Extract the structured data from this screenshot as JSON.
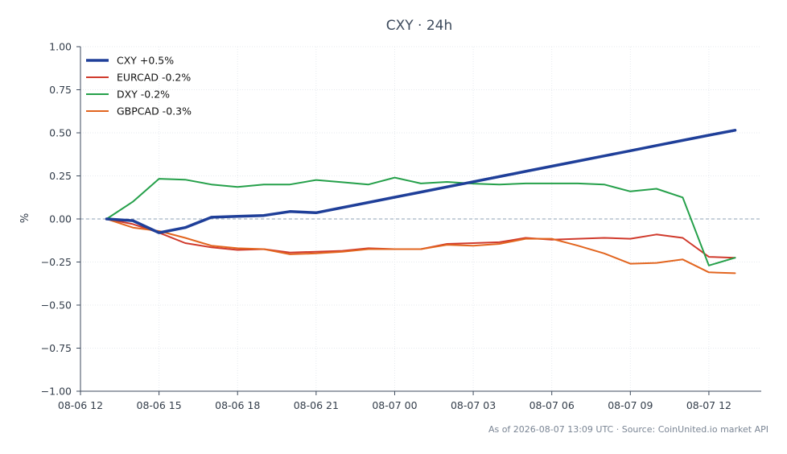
{
  "chart_data": {
    "type": "line",
    "title": "CXY · 24h",
    "xlabel": "",
    "ylabel": "%",
    "ylim": [
      -1.0,
      1.0
    ],
    "y_ticks": [
      "1.00",
      "0.75",
      "0.50",
      "0.25",
      "0.00",
      "−0.25",
      "−0.50",
      "−0.75",
      "−1.00"
    ],
    "x_ticks": [
      "08-06 12",
      "08-06 15",
      "08-06 18",
      "08-06 21",
      "08-07 00",
      "08-07 03",
      "08-07 06",
      "08-07 09",
      "08-07 12"
    ],
    "x_start": "08-06 12",
    "x_end": "08-07 14",
    "x": [
      "08-06 13",
      "08-06 14",
      "08-06 15",
      "08-06 16",
      "08-06 17",
      "08-06 18",
      "08-06 19",
      "08-06 20",
      "08-06 21",
      "08-06 22",
      "08-06 23",
      "08-07 00",
      "08-07 01",
      "08-07 02",
      "08-07 03",
      "08-07 04",
      "08-07 05",
      "08-07 06",
      "08-07 07",
      "08-07 08",
      "08-07 09",
      "08-07 10",
      "08-07 11",
      "08-07 12",
      "08-07 13"
    ],
    "zero_line": true,
    "grid": true,
    "legend_position": "top-left",
    "series": [
      {
        "name": "CXY +0.5%",
        "color": "#1f3f99",
        "width": 3.5,
        "values": [
          0.0,
          -0.01,
          -0.08,
          -0.05,
          0.01,
          0.015,
          0.02,
          0.043,
          0.036,
          0.066,
          0.096,
          0.126,
          0.156,
          0.186,
          0.216,
          0.246,
          0.276,
          0.306,
          0.336,
          0.366,
          0.396,
          0.426,
          0.456,
          0.486,
          0.515
        ]
      },
      {
        "name": "EURCAD -0.2%",
        "color": "#d03a2c",
        "width": 2,
        "values": [
          0.0,
          -0.03,
          -0.08,
          -0.14,
          -0.165,
          -0.18,
          -0.175,
          -0.195,
          -0.19,
          -0.185,
          -0.17,
          -0.175,
          -0.175,
          -0.145,
          -0.14,
          -0.135,
          -0.11,
          -0.12,
          -0.115,
          -0.11,
          -0.115,
          -0.09,
          -0.11,
          -0.22,
          -0.225
        ]
      },
      {
        "name": "DXY -0.2%",
        "color": "#25a04a",
        "width": 2,
        "values": [
          0.0,
          0.1,
          0.233,
          0.228,
          0.2,
          0.186,
          0.2,
          0.2,
          0.226,
          0.213,
          0.2,
          0.24,
          0.206,
          0.215,
          0.205,
          0.2,
          0.206,
          0.206,
          0.206,
          0.2,
          0.16,
          0.175,
          0.125,
          -0.27,
          -0.225
        ]
      },
      {
        "name": "GBPCAD -0.3%",
        "color": "#e2651f",
        "width": 2,
        "values": [
          0.0,
          -0.05,
          -0.07,
          -0.11,
          -0.155,
          -0.17,
          -0.175,
          -0.205,
          -0.2,
          -0.19,
          -0.175,
          -0.175,
          -0.175,
          -0.15,
          -0.155,
          -0.145,
          -0.115,
          -0.115,
          -0.155,
          -0.2,
          -0.26,
          -0.255,
          -0.235,
          -0.31,
          -0.315
        ]
      }
    ],
    "footnote": "As of 2026-08-07 13:09 UTC · Source: CoinUnited.io market API"
  }
}
